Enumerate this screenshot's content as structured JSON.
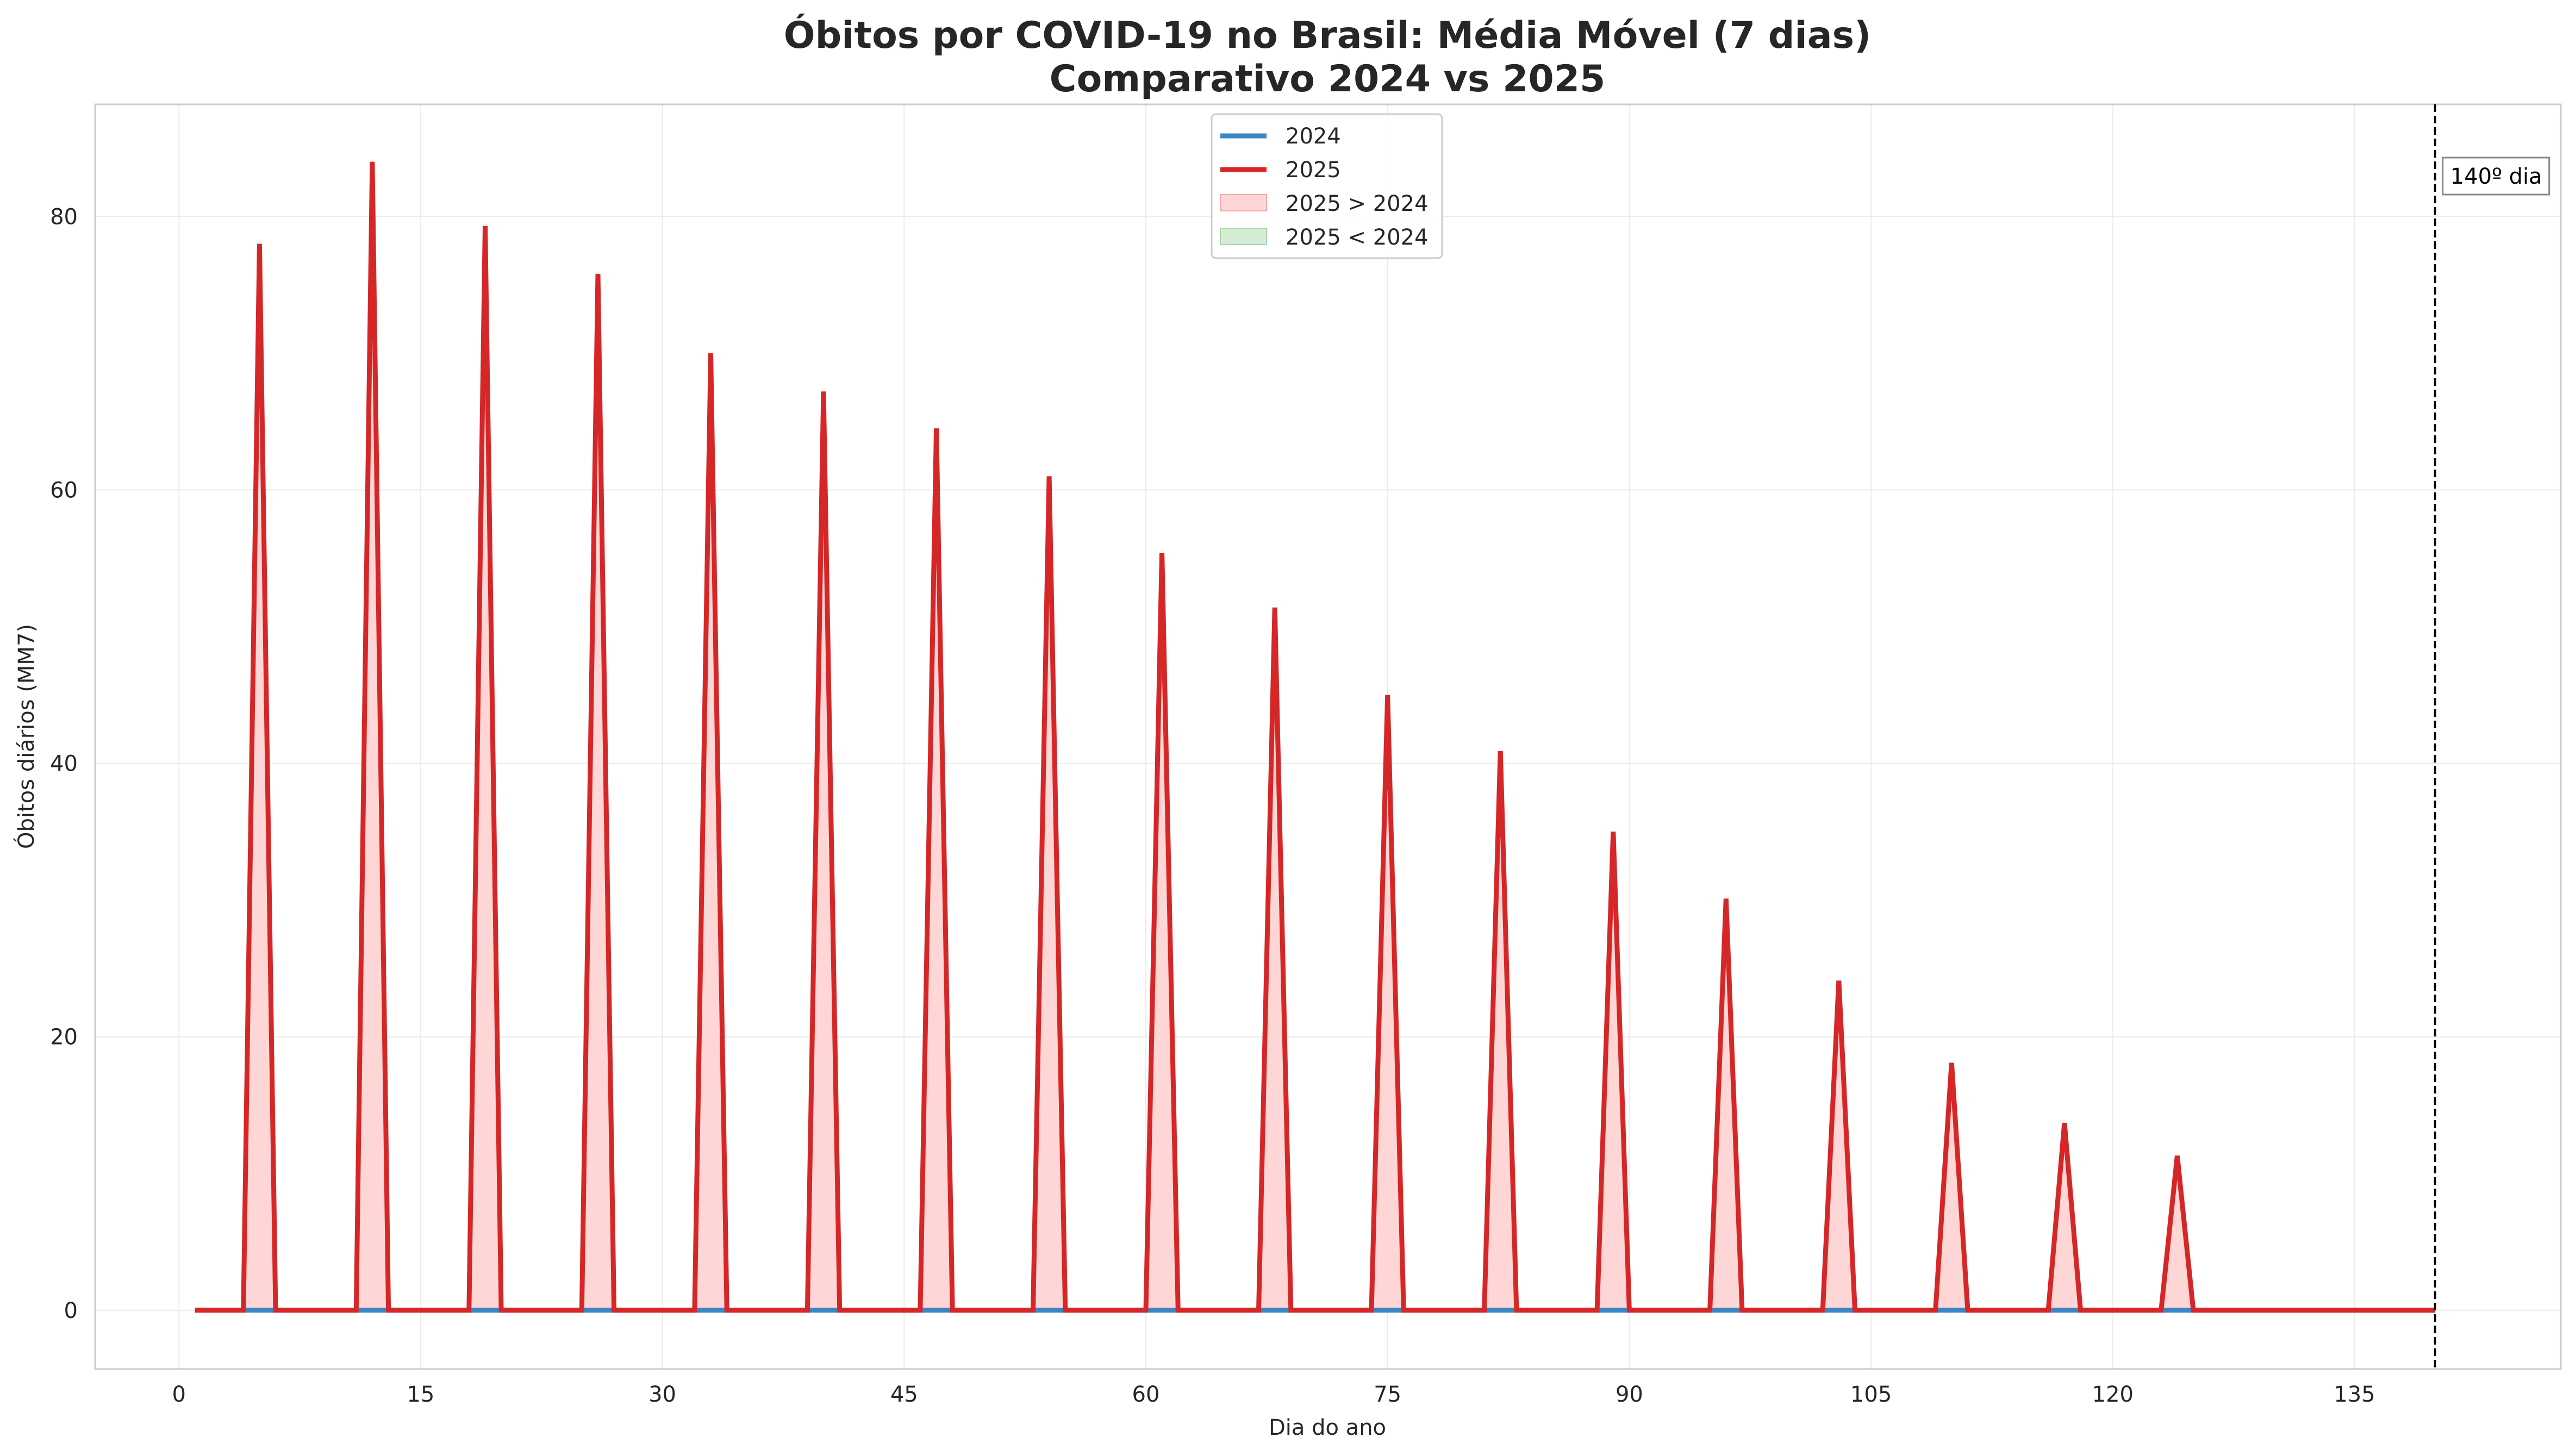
{
  "chart_data": {
    "type": "line",
    "title_line1": "Óbitos por COVID-19 no Brasil: Média Móvel (7 dias)",
    "title_line2": "Comparativo 2024 vs 2025",
    "xlabel": "Dia do ano",
    "ylabel": "Óbitos diários (MM7)",
    "xlim": [
      -5.2,
      147.8
    ],
    "ylim": [
      -4.3,
      88.2
    ],
    "x_ticks": [
      0,
      15,
      30,
      45,
      60,
      75,
      90,
      105,
      120,
      135
    ],
    "y_ticks": [
      0,
      20,
      40,
      60,
      80
    ],
    "grid": true,
    "legend_position": "top-center",
    "legend": [
      "2024",
      "2025",
      "2025 > 2024",
      "2025 < 2024"
    ],
    "series": [
      {
        "name": "2024",
        "color": "#3a86c4",
        "x": [
          1,
          140
        ],
        "values": [
          0,
          0
        ]
      },
      {
        "name": "2025",
        "color": "#d62728",
        "x": [
          1,
          4,
          5,
          6,
          11,
          12,
          13,
          18,
          19,
          20,
          25,
          26,
          27,
          32,
          33,
          34,
          39,
          40,
          41,
          46,
          47,
          48,
          53,
          54,
          55,
          60,
          61,
          62,
          67,
          68,
          69,
          74,
          75,
          76,
          81,
          82,
          83,
          88,
          89,
          90,
          95,
          96,
          97,
          102,
          103,
          104,
          109,
          110,
          111,
          116,
          117,
          118,
          123,
          124,
          125,
          140
        ],
        "values": [
          0,
          0,
          78,
          0,
          0,
          84,
          0,
          0,
          79.3,
          0,
          0,
          75.8,
          0,
          0,
          70,
          0,
          0,
          67.2,
          0,
          0,
          64.5,
          0,
          0,
          61,
          0,
          0,
          55.4,
          0,
          0,
          51.4,
          0,
          0,
          45,
          0,
          0,
          40.9,
          0,
          0,
          35,
          0,
          0,
          30.1,
          0,
          0,
          24.1,
          0,
          0,
          18.1,
          0,
          0,
          13.7,
          0,
          0,
          11.3,
          0,
          0
        ]
      }
    ],
    "fill_above_color": "#ffd6d6",
    "fill_below_color": "#d4ecd4",
    "vline": {
      "x": 140,
      "label": "140º dia"
    }
  }
}
